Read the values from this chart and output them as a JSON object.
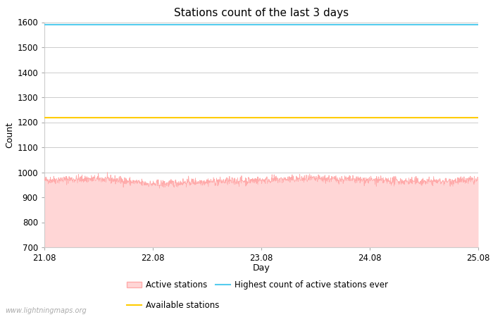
{
  "title": "Stations count of the last 3 days",
  "xlabel": "Day",
  "ylabel": "Count",
  "ylim": [
    700,
    1600
  ],
  "yticks": [
    700,
    800,
    900,
    1000,
    1100,
    1200,
    1300,
    1400,
    1500,
    1600
  ],
  "xlim_start": 0,
  "xlim_end": 288,
  "xtick_positions": [
    0,
    72,
    144,
    216,
    288
  ],
  "xtick_labels": [
    "21.08",
    "22.08",
    "23.08",
    "24.08",
    "25.08"
  ],
  "highest_count": 1590,
  "available_stations": 1218,
  "active_stations_mean": 968,
  "active_color_fill": "#ffd6d6",
  "active_color_line": "#ffaaaa",
  "highest_color": "#55ccee",
  "available_color": "#ffcc00",
  "bg_color": "#ffffff",
  "grid_color": "#cccccc",
  "watermark": "www.lightningmaps.org",
  "title_fontsize": 11,
  "axis_fontsize": 9,
  "tick_fontsize": 8.5,
  "legend_fontsize": 8.5
}
